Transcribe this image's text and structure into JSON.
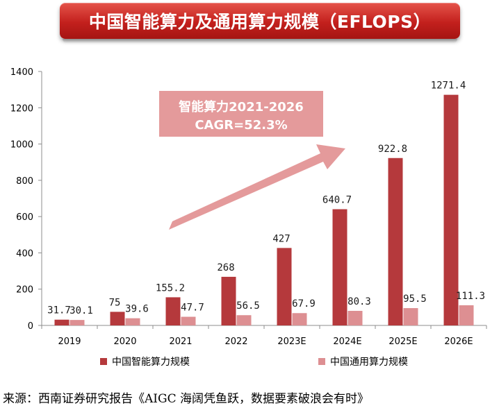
{
  "title": "中国智能算力及通用算力规模（EFLOPS）",
  "source": "来源：西南证券研究报告《AIGC 海阔凭鱼跃，数据要素破浪会有时》",
  "colors": {
    "banner": "#c3201d",
    "series_intelligent": "#b5393c",
    "series_general": "#dd8f92",
    "callout": "#e49a9b",
    "arrow": "#e49a9b"
  },
  "chart_data": {
    "type": "bar",
    "categories": [
      "2019",
      "2020",
      "2021",
      "2022",
      "2023E",
      "2024E",
      "2025E",
      "2026E"
    ],
    "series": [
      {
        "name": "中国智能算力规模",
        "values": [
          31.7,
          75,
          155.2,
          268,
          427,
          640.7,
          922.8,
          1271.4
        ],
        "labels": [
          "31.7",
          "75",
          "155.2",
          "268",
          "427",
          "640.7",
          "922.8",
          "1271.4"
        ]
      },
      {
        "name": "中国通用算力规模",
        "values": [
          30.1,
          39.6,
          47.7,
          56.5,
          67.9,
          80.3,
          95.5,
          111.3
        ],
        "labels": [
          "30.1",
          "39.6",
          "47.7",
          "56.5",
          "67.9",
          "80.3",
          "95.5",
          "111.3"
        ]
      }
    ],
    "yticks": [
      "0",
      "200",
      "400",
      "600",
      "800",
      "1000",
      "1200",
      "1400"
    ],
    "ylim": [
      0,
      1400
    ],
    "grid": false,
    "legend_position": "bottom",
    "annotation": {
      "line1": "智能算力2021-2026",
      "line2": "CAGR=52.3%"
    }
  }
}
